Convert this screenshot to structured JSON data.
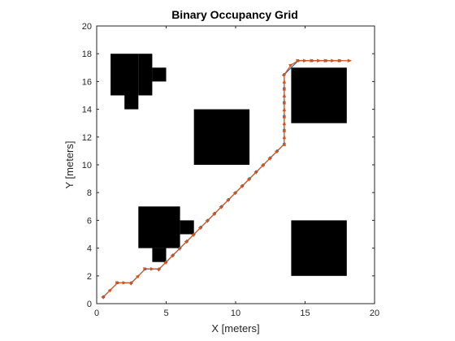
{
  "chart_data": {
    "type": "scatter",
    "title": "Binary Occupancy Grid",
    "xlabel": "X [meters]",
    "ylabel": "Y [meters]",
    "xlim": [
      0,
      20
    ],
    "ylim": [
      0,
      20
    ],
    "xticks": [
      0,
      5,
      10,
      15,
      20
    ],
    "yticks": [
      0,
      2,
      4,
      6,
      8,
      10,
      12,
      14,
      16,
      18,
      20
    ],
    "grid": false,
    "obstacles": [
      {
        "name": "top-left-obstacle",
        "rects": [
          [
            1,
            15,
            3,
            18
          ],
          [
            3,
            15,
            4,
            18
          ],
          [
            4,
            16,
            5,
            17
          ],
          [
            2,
            14,
            3,
            15
          ]
        ]
      },
      {
        "name": "center-obstacle",
        "rects": [
          [
            7,
            10,
            11,
            14
          ]
        ]
      },
      {
        "name": "top-right-obstacle",
        "rects": [
          [
            14,
            13,
            18,
            17
          ]
        ]
      },
      {
        "name": "bottom-left-obstacle",
        "rects": [
          [
            3,
            4,
            6,
            7
          ],
          [
            6,
            5,
            7,
            6
          ],
          [
            4,
            3,
            5,
            4
          ]
        ]
      },
      {
        "name": "bottom-right-obstacle",
        "rects": [
          [
            14,
            2,
            18,
            6
          ]
        ]
      }
    ],
    "series": [
      {
        "color": "#0072BD",
        "marker": "dot",
        "points": [
          [
            0.5,
            0.5
          ],
          [
            1.5,
            1.5
          ],
          [
            2.5,
            1.5
          ],
          [
            3.5,
            2.5
          ],
          [
            4.5,
            2.5
          ],
          [
            5,
            3
          ],
          [
            5.5,
            3.5
          ],
          [
            6,
            4
          ],
          [
            6.5,
            4.5
          ],
          [
            7,
            5
          ],
          [
            7.5,
            5.5
          ],
          [
            8,
            6
          ],
          [
            8.5,
            6.5
          ],
          [
            9,
            7
          ],
          [
            9.5,
            7.5
          ],
          [
            10,
            8
          ],
          [
            10.5,
            8.5
          ],
          [
            11,
            9
          ],
          [
            11.5,
            9.5
          ],
          [
            12,
            10
          ],
          [
            12.5,
            10.5
          ],
          [
            13,
            11
          ],
          [
            13.5,
            11.5
          ],
          [
            13.5,
            12.5
          ],
          [
            13.5,
            13.5
          ],
          [
            13.5,
            14.5
          ],
          [
            13.5,
            15.5
          ],
          [
            13.5,
            16.5
          ],
          [
            14.5,
            17.5
          ],
          [
            15.5,
            17.5
          ],
          [
            16.5,
            17.5
          ],
          [
            17.5,
            17.5
          ]
        ]
      },
      {
        "color": "#D95319",
        "marker": "arrow",
        "points": [
          [
            0.5,
            0.5
          ],
          [
            1,
            1
          ],
          [
            1.5,
            1.5
          ],
          [
            2,
            1.5
          ],
          [
            2.5,
            1.5
          ],
          [
            3,
            2
          ],
          [
            3.5,
            2.5
          ],
          [
            4,
            2.5
          ],
          [
            4.5,
            2.5
          ],
          [
            5,
            3
          ],
          [
            5.5,
            3.5
          ],
          [
            6,
            4
          ],
          [
            6.5,
            4.5
          ],
          [
            7,
            5
          ],
          [
            7.5,
            5.5
          ],
          [
            8,
            6
          ],
          [
            8.5,
            6.5
          ],
          [
            9,
            7
          ],
          [
            9.5,
            7.5
          ],
          [
            10,
            8
          ],
          [
            10.5,
            8.5
          ],
          [
            11,
            9
          ],
          [
            11.5,
            9.5
          ],
          [
            12,
            10
          ],
          [
            12.5,
            10.5
          ],
          [
            13,
            11
          ],
          [
            13.5,
            11.5
          ],
          [
            13.5,
            12
          ],
          [
            13.5,
            12.5
          ],
          [
            13.5,
            13
          ],
          [
            13.5,
            13.5
          ],
          [
            13.5,
            14
          ],
          [
            13.5,
            14.5
          ],
          [
            13.5,
            15
          ],
          [
            13.5,
            15.5
          ],
          [
            13.5,
            16
          ],
          [
            13.5,
            16.5
          ],
          [
            14,
            17.2
          ],
          [
            14.5,
            17.5
          ],
          [
            15,
            17.5
          ],
          [
            15.5,
            17.5
          ],
          [
            16,
            17.5
          ],
          [
            16.5,
            17.5
          ],
          [
            17,
            17.5
          ],
          [
            17.5,
            17.5
          ],
          [
            18.2,
            17.5
          ]
        ]
      }
    ]
  }
}
